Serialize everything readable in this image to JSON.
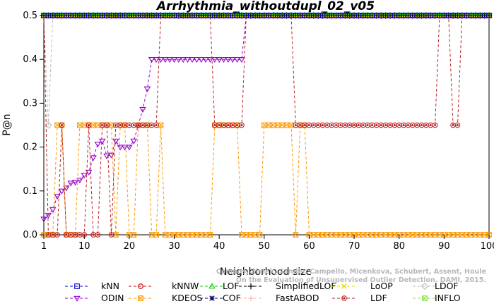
{
  "chart_data": {
    "type": "line",
    "title": "Arrhythmia_withoutdupl_02_v05",
    "xlabel": "Neighborhood size",
    "ylabel": "P@n",
    "xlim": [
      1,
      100
    ],
    "ylim": [
      0,
      0.5
    ],
    "x_ticks": [
      1,
      10,
      20,
      30,
      40,
      50,
      60,
      70,
      80,
      90,
      100
    ],
    "y_ticks": [
      "0.0",
      "0.1",
      "0.2",
      "0.3",
      "0.4",
      "0.5"
    ],
    "grid": false,
    "legend_position": "bottom",
    "credit": "Campos, Zimek, Sander, Campello, Micenkova, Schubert, Assent, Houle\nOn the Evaluation of Unsupervised Outlier Detection. DAMI, 2015.",
    "series": [
      {
        "name": "kNN",
        "color": "#0000cc",
        "marker": "square",
        "points": [
          [
            1,
            0.5
          ],
          [
            100,
            0.5
          ]
        ]
      },
      {
        "name": "kNNW",
        "color": "#cc0000",
        "marker": "circle",
        "points": [
          [
            1,
            0.5
          ],
          [
            100,
            0.5
          ]
        ]
      },
      {
        "name": "LOF",
        "color": "#00cc00",
        "marker": "triangle-up",
        "points": [
          [
            1,
            0.5
          ],
          [
            100,
            0.5
          ]
        ]
      },
      {
        "name": "SimplifiedLOF",
        "color": "#000000",
        "marker": "plus",
        "points": [
          [
            1,
            0.5
          ],
          [
            100,
            0.5
          ]
        ]
      },
      {
        "name": "LoOP",
        "color": "#dddd00",
        "marker": "x",
        "points": [
          [
            1,
            0.5
          ],
          [
            100,
            0.5
          ]
        ]
      },
      {
        "name": "LDOF",
        "color": "#bbbbbb",
        "marker": "diamond",
        "points": [
          [
            1,
            0.5
          ],
          [
            2,
            0.25
          ],
          [
            3,
            0.5
          ],
          [
            100,
            0.5
          ]
        ]
      },
      {
        "name": "ODIN",
        "color": "#9900cc",
        "marker": "triangle-down",
        "points": [
          [
            1,
            0.036
          ],
          [
            2,
            0.045
          ],
          [
            3,
            0.058
          ],
          [
            4,
            0.088
          ],
          [
            5,
            0.1
          ],
          [
            6,
            0.107
          ],
          [
            7,
            0.118
          ],
          [
            8,
            0.12
          ],
          [
            9,
            0.125
          ],
          [
            10,
            0.136
          ],
          [
            11,
            0.143
          ],
          [
            12,
            0.176
          ],
          [
            13,
            0.207
          ],
          [
            14,
            0.214
          ],
          [
            15,
            0.18
          ],
          [
            16,
            0.182
          ],
          [
            17,
            0.214
          ],
          [
            18,
            0.2
          ],
          [
            19,
            0.2
          ],
          [
            20,
            0.2
          ],
          [
            21,
            0.214
          ],
          [
            22,
            0.25
          ],
          [
            23,
            0.286
          ],
          [
            24,
            0.333
          ],
          [
            25,
            0.4
          ],
          [
            26,
            0.4
          ],
          [
            27,
            0.4
          ],
          [
            28,
            0.4
          ],
          [
            29,
            0.4
          ],
          [
            30,
            0.4
          ],
          [
            31,
            0.4
          ],
          [
            32,
            0.4
          ],
          [
            33,
            0.4
          ],
          [
            34,
            0.4
          ],
          [
            35,
            0.4
          ],
          [
            36,
            0.4
          ],
          [
            37,
            0.4
          ],
          [
            38,
            0.4
          ],
          [
            39,
            0.4
          ],
          [
            40,
            0.4
          ],
          [
            41,
            0.4
          ],
          [
            42,
            0.4
          ],
          [
            43,
            0.4
          ],
          [
            44,
            0.4
          ],
          [
            45,
            0.4
          ],
          [
            46,
            0.5
          ],
          [
            47,
            0.5
          ],
          [
            100,
            0.5
          ]
        ]
      },
      {
        "name": "KDEOS",
        "color": "#ff9900",
        "marker": "square-x",
        "points": [
          [
            1,
            0
          ],
          [
            2,
            0
          ],
          [
            3,
            0
          ],
          [
            4,
            0.25
          ],
          [
            5,
            0.25
          ],
          [
            6,
            0
          ],
          [
            7,
            0
          ],
          [
            8,
            0
          ],
          [
            9,
            0.25
          ],
          [
            10,
            0.25
          ],
          [
            11,
            0.25
          ],
          [
            12,
            0.25
          ],
          [
            13,
            0.25
          ],
          [
            14,
            0.25
          ],
          [
            15,
            0.25
          ],
          [
            16,
            0.25
          ],
          [
            17,
            0
          ],
          [
            18,
            0.25
          ],
          [
            19,
            0.25
          ],
          [
            20,
            0
          ],
          [
            21,
            0
          ],
          [
            22,
            0.25
          ],
          [
            23,
            0.25
          ],
          [
            24,
            0.25
          ],
          [
            25,
            0
          ],
          [
            26,
            0
          ],
          [
            27,
            0.25
          ],
          [
            28,
            0
          ],
          [
            29,
            0
          ],
          [
            30,
            0
          ],
          [
            31,
            0
          ],
          [
            32,
            0
          ],
          [
            33,
            0
          ],
          [
            34,
            0
          ],
          [
            35,
            0
          ],
          [
            36,
            0
          ],
          [
            37,
            0
          ],
          [
            38,
            0
          ],
          [
            39,
            0.25
          ],
          [
            40,
            0.25
          ],
          [
            41,
            0.25
          ],
          [
            42,
            0.25
          ],
          [
            43,
            0.25
          ],
          [
            44,
            0.25
          ],
          [
            45,
            0
          ],
          [
            46,
            0
          ],
          [
            47,
            0
          ],
          [
            48,
            0
          ],
          [
            49,
            0
          ],
          [
            50,
            0.25
          ],
          [
            51,
            0.25
          ],
          [
            52,
            0.25
          ],
          [
            53,
            0.25
          ],
          [
            54,
            0.25
          ],
          [
            55,
            0.25
          ],
          [
            56,
            0.25
          ],
          [
            57,
            0
          ],
          [
            58,
            0.25
          ],
          [
            59,
            0.25
          ],
          [
            60,
            0
          ],
          [
            61,
            0
          ],
          [
            62,
            0
          ],
          [
            63,
            0
          ],
          [
            64,
            0
          ],
          [
            65,
            0
          ],
          [
            66,
            0
          ],
          [
            67,
            0
          ],
          [
            68,
            0
          ],
          [
            69,
            0
          ],
          [
            70,
            0
          ],
          [
            71,
            0
          ],
          [
            72,
            0
          ],
          [
            73,
            0
          ],
          [
            74,
            0
          ],
          [
            75,
            0
          ],
          [
            76,
            0
          ],
          [
            77,
            0
          ],
          [
            78,
            0
          ],
          [
            79,
            0
          ],
          [
            80,
            0
          ],
          [
            81,
            0
          ],
          [
            82,
            0
          ],
          [
            83,
            0
          ],
          [
            84,
            0
          ],
          [
            85,
            0
          ],
          [
            86,
            0
          ],
          [
            87,
            0
          ],
          [
            88,
            0
          ],
          [
            89,
            0
          ],
          [
            90,
            0
          ],
          [
            91,
            0
          ],
          [
            92,
            0
          ],
          [
            93,
            0
          ],
          [
            94,
            0
          ],
          [
            95,
            0
          ],
          [
            96,
            0
          ],
          [
            97,
            0
          ],
          [
            98,
            0
          ],
          [
            99,
            0
          ],
          [
            100,
            0
          ]
        ]
      },
      {
        "name": "COF",
        "color": "#000066",
        "marker": "star",
        "points": [
          [
            1,
            0.5
          ],
          [
            100,
            0.5
          ]
        ]
      },
      {
        "name": "FastABOD",
        "color": "#ffaaaa",
        "marker": "plus-light",
        "points": [
          [
            1,
            0.5
          ],
          [
            100,
            0.5
          ]
        ]
      },
      {
        "name": "LDF",
        "color": "#bb2222",
        "marker": "circle-filled",
        "points": [
          [
            1,
            0.5
          ],
          [
            2,
            0
          ],
          [
            3,
            0
          ],
          [
            4,
            0
          ],
          [
            5,
            0.25
          ],
          [
            6,
            0
          ],
          [
            7,
            0
          ],
          [
            8,
            0
          ],
          [
            9,
            0
          ],
          [
            10,
            0
          ],
          [
            11,
            0.25
          ],
          [
            12,
            0
          ],
          [
            13,
            0
          ],
          [
            14,
            0.25
          ],
          [
            15,
            0.25
          ],
          [
            16,
            0
          ],
          [
            17,
            0.25
          ],
          [
            18,
            0.25
          ],
          [
            19,
            0.25
          ],
          [
            20,
            0.25
          ],
          [
            21,
            0.25
          ],
          [
            22,
            0.25
          ],
          [
            23,
            0.25
          ],
          [
            24,
            0.25
          ],
          [
            25,
            0.25
          ],
          [
            26,
            0.25
          ],
          [
            27,
            0.5
          ],
          [
            38,
            0.5
          ],
          [
            39,
            0.25
          ],
          [
            40,
            0.25
          ],
          [
            41,
            0.25
          ],
          [
            42,
            0.25
          ],
          [
            43,
            0.25
          ],
          [
            44,
            0.25
          ],
          [
            45,
            0.25
          ],
          [
            46,
            0.5
          ],
          [
            56,
            0.5
          ],
          [
            57,
            0.25
          ],
          [
            58,
            0.25
          ],
          [
            59,
            0.25
          ],
          [
            60,
            0.25
          ],
          [
            61,
            0.25
          ],
          [
            62,
            0.25
          ],
          [
            63,
            0.25
          ],
          [
            64,
            0.25
          ],
          [
            65,
            0.25
          ],
          [
            66,
            0.25
          ],
          [
            67,
            0.25
          ],
          [
            68,
            0.25
          ],
          [
            69,
            0.25
          ],
          [
            70,
            0.25
          ],
          [
            71,
            0.25
          ],
          [
            72,
            0.25
          ],
          [
            73,
            0.25
          ],
          [
            74,
            0.25
          ],
          [
            75,
            0.25
          ],
          [
            76,
            0.25
          ],
          [
            77,
            0.25
          ],
          [
            78,
            0.25
          ],
          [
            79,
            0.25
          ],
          [
            80,
            0.25
          ],
          [
            81,
            0.25
          ],
          [
            82,
            0.25
          ],
          [
            83,
            0.25
          ],
          [
            84,
            0.25
          ],
          [
            85,
            0.25
          ],
          [
            86,
            0.25
          ],
          [
            87,
            0.25
          ],
          [
            88,
            0.25
          ],
          [
            89,
            0.5
          ],
          [
            91,
            0.5
          ],
          [
            92,
            0.25
          ],
          [
            93,
            0.25
          ],
          [
            94,
            0.5
          ],
          [
            100,
            0.5
          ]
        ]
      },
      {
        "name": "INFLO",
        "color": "#88dd44",
        "marker": "square-x",
        "points": [
          [
            1,
            0.5
          ],
          [
            100,
            0.5
          ]
        ]
      }
    ],
    "legend_order": [
      "kNN",
      "kNNW",
      "LOF",
      "SimplifiedLOF",
      "LoOP",
      "LDOF",
      "ODIN",
      "KDEOS",
      "COF",
      "FastABOD",
      "LDF",
      "INFLO"
    ]
  }
}
